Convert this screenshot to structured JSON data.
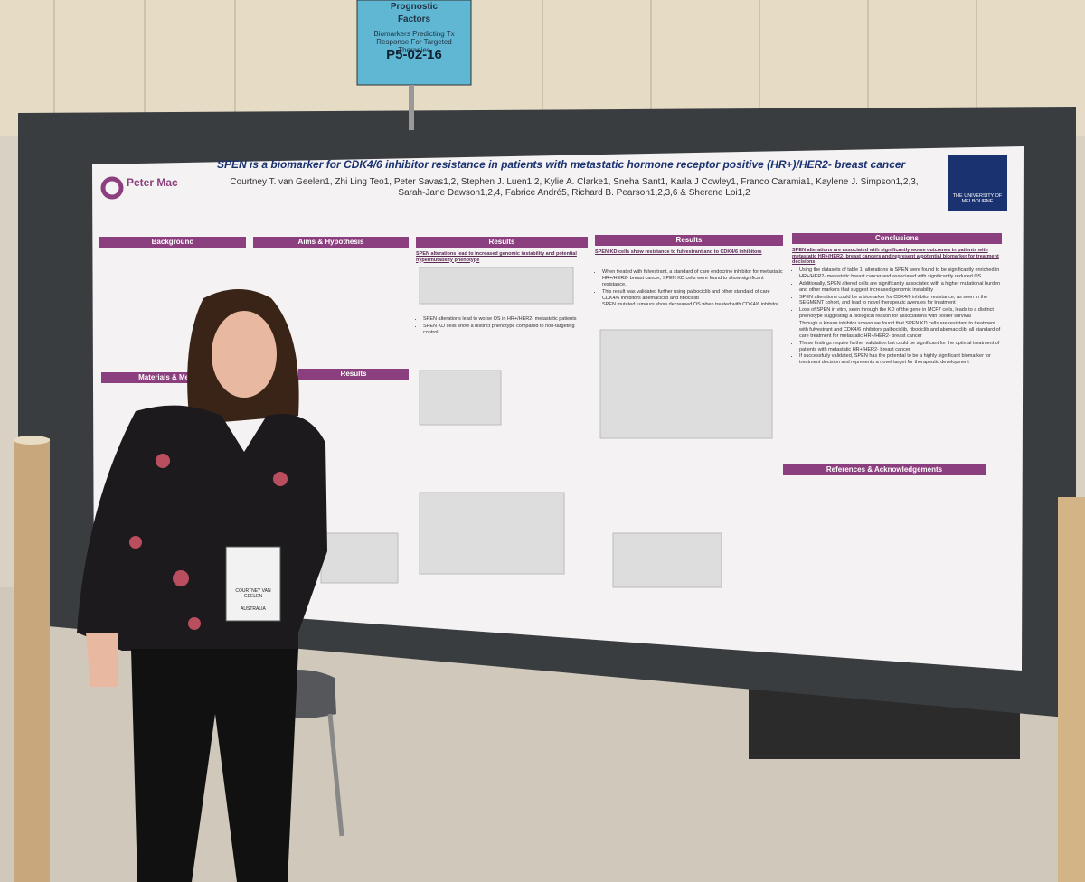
{
  "sign": {
    "line1": "Prognostic",
    "line2": "Factors",
    "subtitle": "Biomarkers Predicting Tx Response For Targeted Therapies",
    "code": "P5-02-16"
  },
  "poster": {
    "title": "SPEN is a biomarker for CDK4/6 inhibitor resistance in patients with metastatic hormone receptor positive (HR+)/HER2- breast cancer",
    "authors": "Courtney T. van Geelen1, Zhi Ling Teo1, Peter Savas1,2, Stephen J. Luen1,2, Kylie A. Clarke1, Sneha Sant1, Karla J Cowley1, Franco Caramia1, Kaylene J. Simpson1,2,3, Sarah-Jane Dawson1,2,4, Fabrice André5, Richard B. Pearson1,2,3,6 & Sherene Loi1,2",
    "logo_left": "Peter Mac",
    "logo_right": "THE UNIVERSITY OF MELBOURNE",
    "sections": [
      {
        "heading": "Background",
        "items": []
      },
      {
        "heading": "Aims & Hypothesis",
        "items": []
      },
      {
        "heading": "Results",
        "subheading": "SPEN alterations lead to increased genomic instability and potential hypermutability phenotype",
        "items": [
          "SPEN alterations lead to worse OS in HR+/HER2- metastatic patients",
          "SPEN KD cells show a distinct phenotype compared to non-targeting control"
        ]
      },
      {
        "heading": "Results",
        "subheading": "SPEN KD cells show resistance to fulvestrant and to CDK4/6 inhibitors",
        "items": [
          "When treated with fulvestrant, a standard of care endocrine inhibitor for metastatic HR+/HER2- breast cancer, SPEN KD cells were found to show significant resistance.",
          "This result was validated further using palbociclib and other standard of care CDK4/6 inhibitors abemaciclib and ribociclib",
          "SPEN mutated tumours show decreased OS when treated with CDK4/6 inhibitor"
        ]
      },
      {
        "heading": "Conclusions",
        "subheading": "SPEN alterations are associated with significantly worse outcomes in patients with metastatic HR+/HER2- breast cancers and represent a potential biomarker for treatment decisions",
        "items": [
          "Using the datasets of table 1, alterations in SPEN were found to be significantly enriched in HR+/HER2- metastatic breast cancer and associated with significantly reduced OS",
          "Additionally, SPEN altered cells are significantly associated with a higher mutational burden and other markers that suggest increased genomic instability",
          "SPEN alterations could be a biomarker for CDK4/6 inhibitor resistance, as seen in the SEGMENT cohort, and lead to novel therapeutic avenues for treatment",
          "Loss of SPEN in vitro, seen through the KD of the gene in MCF7 cells, leads to a distinct phenotype suggesting a biological reason for associations with poorer survival",
          "Through a kinase inhibitor screen we found that SPEN KD cells are resistant to treatment with fulvestrant and CDK4/6 inhibitors palbociclib, ribociclib and abemaciclib, all standard of care treatment for metastatic HR+/HER2- breast cancer",
          "These findings require further validation but could be significant for the optimal treatment of patients with metastatic HR+/HER2- breast cancer",
          "If successfully validated, SPEN has the potential to be a highly significant biomarker for treatment decision and represents a novel target for therapeutic development"
        ]
      },
      {
        "heading": "Materials & Methods",
        "items": []
      },
      {
        "heading": "Results",
        "items": []
      },
      {
        "heading": "References & Acknowledgements",
        "items": []
      }
    ]
  },
  "badge": {
    "name": "COURTNEY VAN GEELEN",
    "country": "AUSTRALIA"
  }
}
